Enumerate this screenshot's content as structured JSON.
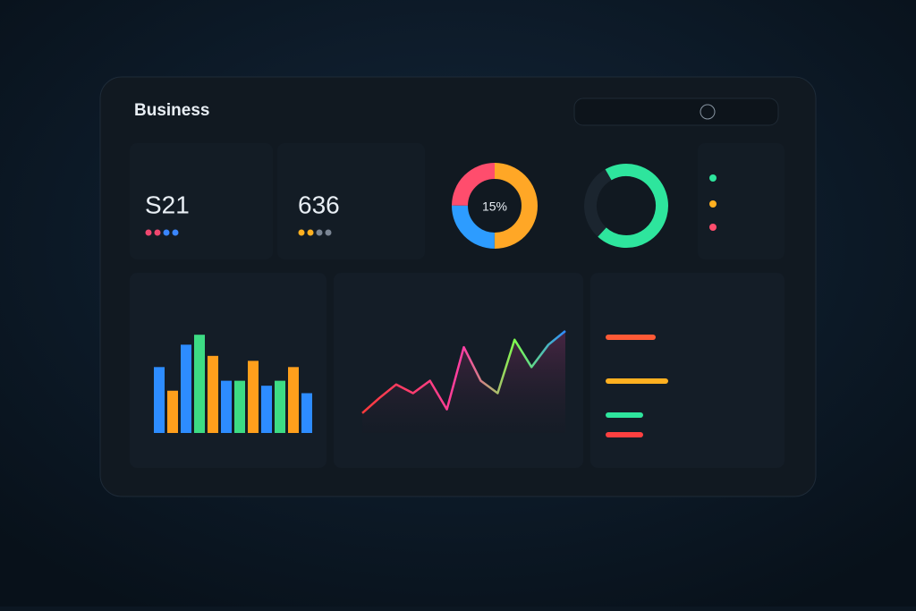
{
  "header": {
    "title": "Business"
  },
  "kpis": [
    {
      "value": "S21",
      "dots": [
        "#ef476f",
        "#ef476f",
        "#3a86ff",
        "#3a86ff"
      ]
    },
    {
      "value": "636",
      "dots": [
        "#ffb020",
        "#ffb020",
        "#7a8594",
        "#7a8594"
      ]
    }
  ],
  "donut": {
    "label": "15%",
    "values": [
      50,
      25,
      25
    ],
    "colors": [
      "#ffa726",
      "#2d9cff",
      "#ff4d6d"
    ]
  },
  "ring": {
    "values": [
      70,
      30
    ],
    "colors": [
      "#2ee59d",
      "#1b252f"
    ]
  },
  "bar_chart": {
    "ylim": [
      0,
      100
    ],
    "values": [
      53,
      34,
      71,
      79,
      62,
      42,
      42,
      58,
      38,
      42,
      53,
      32
    ],
    "colors": [
      "#2d8cff",
      "#ff9f1c",
      "#2d8cff",
      "#3ddc84",
      "#ff9f1c",
      "#2d8cff",
      "#3ddc84",
      "#ff9f1c",
      "#2d8cff",
      "#3ddc84",
      "#ff9f1c",
      "#2d8cff"
    ]
  },
  "line_chart": {
    "ylim": [
      0,
      100
    ],
    "values": [
      16,
      28,
      39,
      32,
      42,
      19,
      69,
      42,
      32,
      75,
      53,
      71,
      82
    ]
  },
  "progress": {
    "values": [
      80,
      100,
      60,
      60
    ],
    "colors": [
      "#ff5a36",
      "#ffb020",
      "#2ee59d",
      "#ff4040"
    ]
  }
}
